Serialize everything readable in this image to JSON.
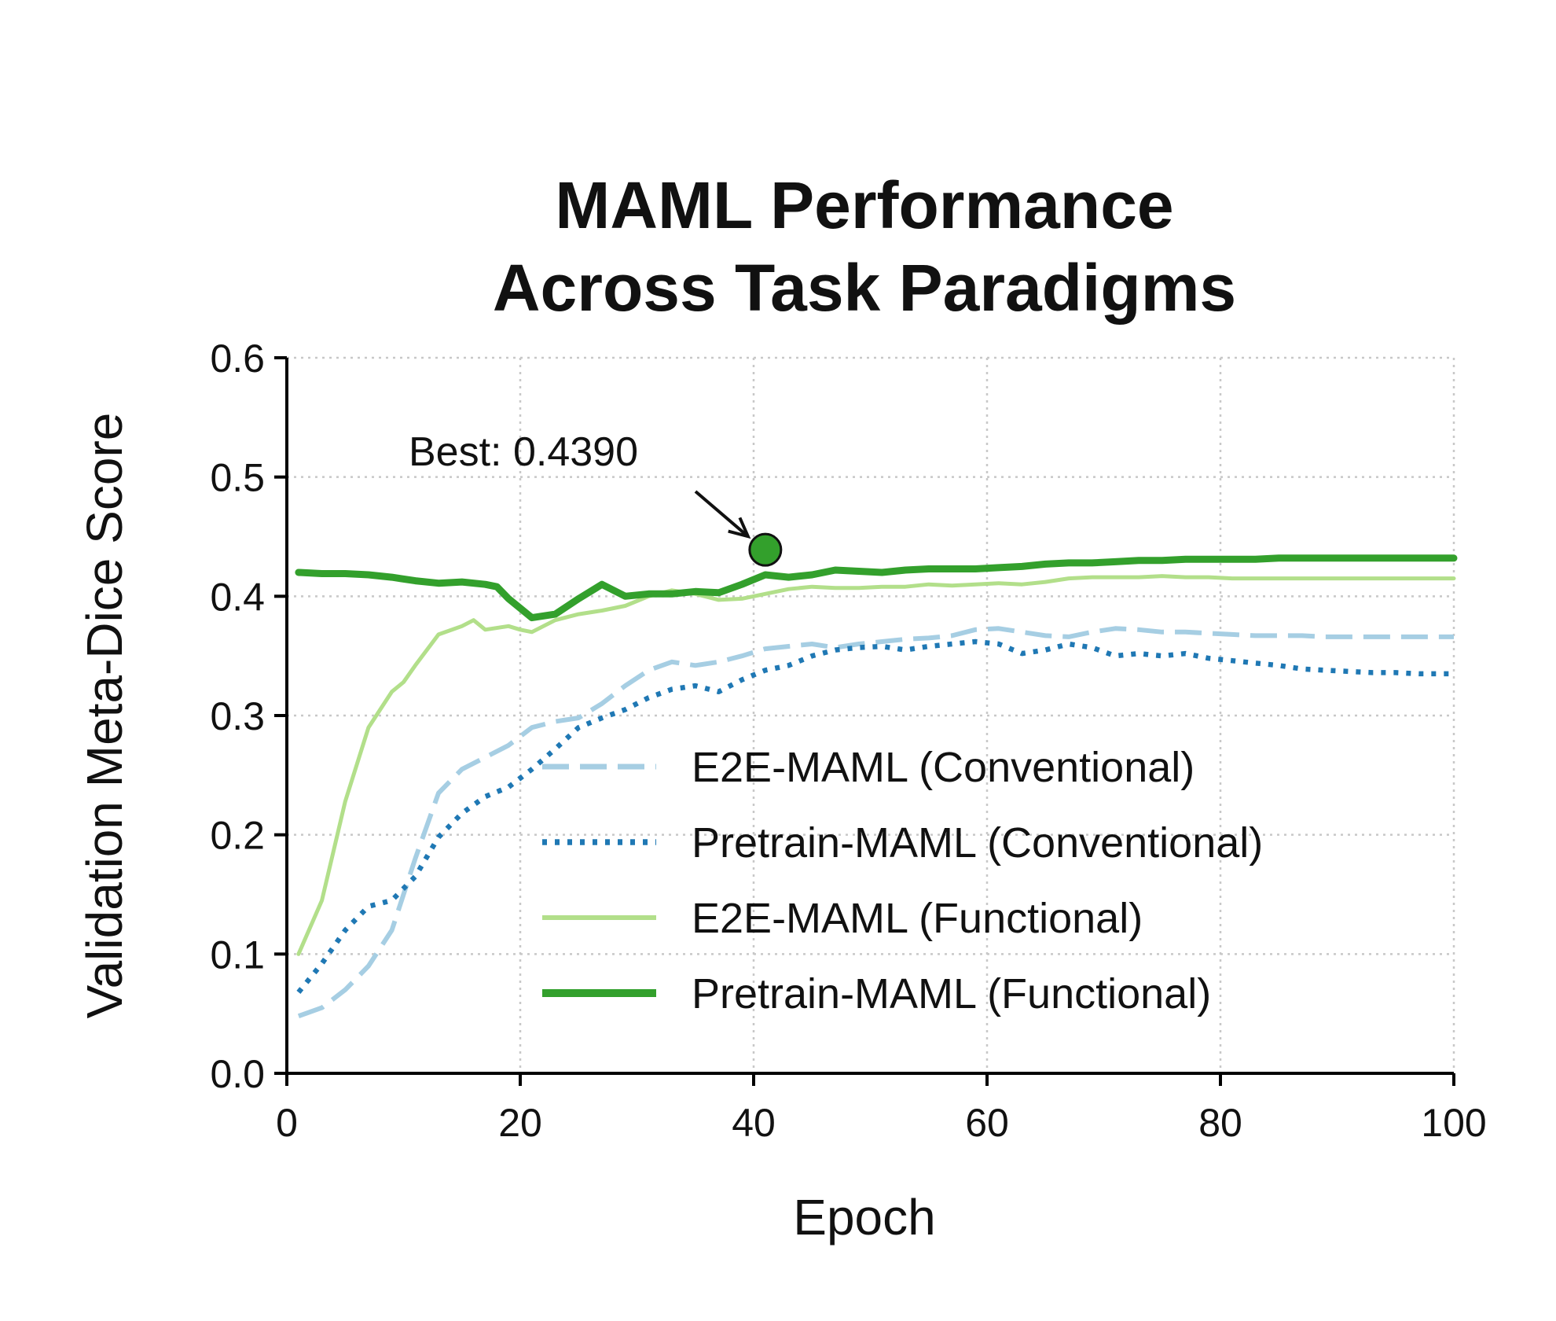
{
  "chart_data": {
    "type": "line",
    "title_lines": [
      "MAML Performance",
      "Across Task Paradigms"
    ],
    "xlabel": "Epoch",
    "ylabel": "Validation Meta-Dice Score",
    "xlim": [
      0,
      100
    ],
    "ylim": [
      0,
      0.6
    ],
    "xticks": [
      0,
      20,
      40,
      60,
      80,
      100
    ],
    "xtick_labels": [
      "0",
      "20",
      "40",
      "60",
      "80",
      "100"
    ],
    "yticks": [
      0,
      0.1,
      0.2,
      0.3,
      0.4,
      0.5,
      0.6
    ],
    "ytick_labels": [
      "0.0",
      "0.1",
      "0.2",
      "0.3",
      "0.4",
      "0.5",
      "0.6"
    ],
    "grid": true,
    "legend_position": "lower-right",
    "series": [
      {
        "name": "E2E-MAML (Conventional)",
        "color": "#a6cee3",
        "style": "dashed",
        "x": [
          1,
          3,
          5,
          7,
          9,
          11,
          13,
          15,
          17,
          19,
          21,
          23,
          25,
          27,
          29,
          31,
          33,
          35,
          37,
          39,
          41,
          43,
          45,
          47,
          49,
          51,
          53,
          55,
          57,
          59,
          61,
          63,
          65,
          67,
          69,
          71,
          73,
          75,
          77,
          79,
          81,
          83,
          85,
          87,
          89,
          91,
          93,
          95,
          97,
          99,
          100
        ],
        "y": [
          0.048,
          0.055,
          0.07,
          0.09,
          0.12,
          0.18,
          0.235,
          0.255,
          0.265,
          0.275,
          0.29,
          0.295,
          0.298,
          0.31,
          0.325,
          0.338,
          0.345,
          0.342,
          0.345,
          0.35,
          0.356,
          0.358,
          0.36,
          0.357,
          0.36,
          0.362,
          0.364,
          0.365,
          0.367,
          0.372,
          0.373,
          0.37,
          0.367,
          0.366,
          0.37,
          0.373,
          0.372,
          0.37,
          0.37,
          0.369,
          0.368,
          0.367,
          0.367,
          0.367,
          0.366,
          0.366,
          0.366,
          0.366,
          0.366,
          0.366,
          0.366
        ]
      },
      {
        "name": "Pretrain-MAML (Conventional)",
        "color": "#1f78b4",
        "style": "dotted",
        "x": [
          1,
          3,
          5,
          7,
          9,
          11,
          13,
          15,
          17,
          19,
          21,
          23,
          25,
          27,
          29,
          31,
          33,
          35,
          37,
          39,
          41,
          43,
          45,
          47,
          49,
          51,
          53,
          55,
          57,
          59,
          61,
          63,
          65,
          67,
          69,
          71,
          73,
          75,
          77,
          79,
          81,
          83,
          85,
          87,
          89,
          91,
          93,
          95,
          97,
          99,
          100
        ],
        "y": [
          0.068,
          0.092,
          0.12,
          0.14,
          0.145,
          0.165,
          0.198,
          0.218,
          0.232,
          0.24,
          0.255,
          0.272,
          0.29,
          0.298,
          0.305,
          0.315,
          0.322,
          0.325,
          0.32,
          0.33,
          0.338,
          0.342,
          0.35,
          0.355,
          0.357,
          0.358,
          0.355,
          0.358,
          0.36,
          0.362,
          0.36,
          0.352,
          0.355,
          0.36,
          0.357,
          0.35,
          0.352,
          0.35,
          0.352,
          0.348,
          0.346,
          0.344,
          0.342,
          0.339,
          0.338,
          0.337,
          0.336,
          0.336,
          0.335,
          0.335,
          0.335
        ]
      },
      {
        "name": "E2E-MAML (Functional)",
        "color": "#b2df8a",
        "style": "solid",
        "x": [
          1,
          3,
          5,
          7,
          9,
          10,
          11,
          13,
          15,
          16,
          17,
          19,
          20,
          21,
          23,
          25,
          27,
          29,
          31,
          33,
          35,
          37,
          39,
          41,
          43,
          45,
          47,
          49,
          51,
          53,
          55,
          57,
          59,
          61,
          63,
          65,
          67,
          69,
          71,
          73,
          75,
          77,
          79,
          81,
          83,
          85,
          87,
          89,
          91,
          93,
          95,
          97,
          99,
          100
        ],
        "y": [
          0.1,
          0.145,
          0.228,
          0.29,
          0.32,
          0.328,
          0.342,
          0.368,
          0.375,
          0.38,
          0.372,
          0.375,
          0.372,
          0.37,
          0.38,
          0.385,
          0.388,
          0.392,
          0.4,
          0.405,
          0.402,
          0.397,
          0.398,
          0.402,
          0.406,
          0.408,
          0.407,
          0.407,
          0.408,
          0.408,
          0.41,
          0.409,
          0.41,
          0.411,
          0.41,
          0.412,
          0.415,
          0.416,
          0.416,
          0.416,
          0.417,
          0.416,
          0.416,
          0.415,
          0.415,
          0.415,
          0.415,
          0.415,
          0.415,
          0.415,
          0.415,
          0.415,
          0.415,
          0.415
        ]
      },
      {
        "name": "Pretrain-MAML (Functional)",
        "color": "#33a02c",
        "style": "solid-thick",
        "x": [
          1,
          3,
          5,
          7,
          9,
          11,
          13,
          15,
          17,
          18,
          19,
          20,
          21,
          23,
          25,
          27,
          29,
          31,
          33,
          35,
          37,
          39,
          41,
          43,
          45,
          47,
          49,
          51,
          53,
          55,
          57,
          59,
          61,
          63,
          65,
          67,
          69,
          71,
          73,
          75,
          77,
          79,
          81,
          83,
          85,
          87,
          89,
          91,
          93,
          95,
          97,
          99,
          100
        ],
        "y": [
          0.42,
          0.419,
          0.419,
          0.418,
          0.416,
          0.413,
          0.411,
          0.412,
          0.41,
          0.408,
          0.398,
          0.39,
          0.382,
          0.385,
          0.398,
          0.41,
          0.4,
          0.402,
          0.402,
          0.404,
          0.403,
          0.41,
          0.418,
          0.416,
          0.418,
          0.422,
          0.421,
          0.42,
          0.422,
          0.423,
          0.423,
          0.423,
          0.424,
          0.425,
          0.427,
          0.428,
          0.428,
          0.429,
          0.43,
          0.43,
          0.431,
          0.431,
          0.431,
          0.431,
          0.432,
          0.432,
          0.432,
          0.432,
          0.432,
          0.432,
          0.432,
          0.432,
          0.432
        ]
      }
    ],
    "annotation": {
      "text": "Best: 0.4390",
      "x": 41,
      "y": 0.439,
      "marker_color": "#33a02c"
    }
  }
}
